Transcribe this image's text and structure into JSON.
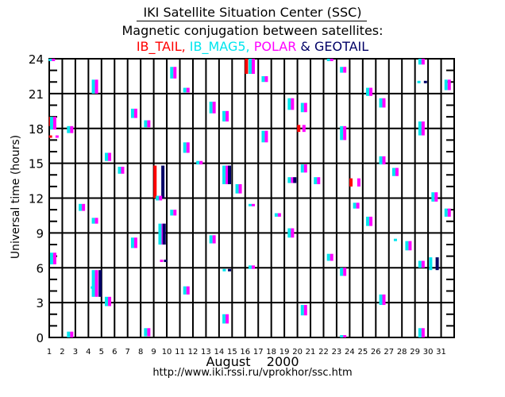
{
  "header": {
    "title": "IKI Satellite Situation Center (SSC)",
    "subtitle": "Magnetic conjugation between satellites:",
    "satellites_line": [
      {
        "text": "IB_TAIL",
        "color": "#ff0000"
      },
      {
        "text": ", ",
        "color": "#ff0000"
      },
      {
        "text": "IB_MAG5",
        "color": "#00e5ee"
      },
      {
        "text": ", ",
        "color": "#00e5ee"
      },
      {
        "text": "POLAR",
        "color": "#ff00ff"
      },
      {
        "text": " & ",
        "color": "#000066"
      },
      {
        "text": "GEOTAIL",
        "color": "#000066"
      }
    ]
  },
  "footer": {
    "month_label": "August    2000",
    "url": "http://www.iki.rssi.ru/vprokhor/ssc.htm"
  },
  "colors": {
    "IB_TAIL": "#ff0000",
    "IB_MAG5": "#00e5ee",
    "POLAR": "#ff00ff",
    "GEOTAIL": "#000066",
    "grid": "#000000"
  },
  "chart_data": {
    "type": "scatter",
    "title": "Magnetic conjugation between satellites",
    "xlabel": "August 2000",
    "ylabel": "Universal time (hours)",
    "xlim": [
      1,
      32
    ],
    "ylim": [
      0,
      24
    ],
    "x_ticks": [
      "1",
      "2",
      "3",
      "4",
      "5",
      "6",
      "7",
      "8",
      "9",
      "10",
      "11",
      "12",
      "13",
      "14",
      "15",
      "16",
      "17",
      "18",
      "19",
      "20",
      "21",
      "22",
      "23",
      "24",
      "25",
      "26",
      "27",
      "28",
      "29",
      "30",
      "31"
    ],
    "y_ticks": [
      0,
      3,
      6,
      9,
      12,
      15,
      18,
      21,
      24
    ],
    "grid": true,
    "legend": "top",
    "series_names": [
      "IB_TAIL",
      "IB_MAG5",
      "POLAR",
      "GEOTAIL"
    ],
    "intervals": [
      {
        "day": 1.2,
        "sat": [
          "IB_MAG5",
          "POLAR"
        ],
        "start": 23.9,
        "end": 24.3
      },
      {
        "day": 1.1,
        "sat": [
          "IB_TAIL"
        ],
        "start": 18.2,
        "end": 19.0
      },
      {
        "day": 1.3,
        "sat": [
          "IB_MAG5",
          "POLAR"
        ],
        "start": 17.9,
        "end": 19.0
      },
      {
        "day": 1.1,
        "sat": [
          "IB_TAIL"
        ],
        "start": 17.2,
        "end": 17.4
      },
      {
        "day": 1.6,
        "sat": [
          "POLAR"
        ],
        "start": 17.2,
        "end": 17.4
      },
      {
        "day": 1.3,
        "sat": [
          "IB_MAG5",
          "POLAR"
        ],
        "start": 6.3,
        "end": 7.3
      },
      {
        "day": 2.6,
        "sat": [
          "IB_MAG5",
          "POLAR"
        ],
        "start": 17.6,
        "end": 18.2
      },
      {
        "day": 2.6,
        "sat": [
          "IB_MAG5",
          "POLAR"
        ],
        "start": 0.0,
        "end": 0.5
      },
      {
        "day": 3.5,
        "sat": [
          "IB_MAG5",
          "POLAR"
        ],
        "start": 10.9,
        "end": 11.5
      },
      {
        "day": 4.5,
        "sat": [
          "IB_MAG5",
          "POLAR"
        ],
        "start": 21.0,
        "end": 22.2
      },
      {
        "day": 4.5,
        "sat": [
          "IB_MAG5",
          "POLAR"
        ],
        "start": 9.8,
        "end": 10.3
      },
      {
        "day": 4.5,
        "sat": [
          "IB_MAG5",
          "POLAR"
        ],
        "start": 3.5,
        "end": 5.8
      },
      {
        "day": 4.9,
        "sat": [
          "GEOTAIL"
        ],
        "start": 3.5,
        "end": 5.8
      },
      {
        "day": 4.3,
        "sat": [
          "IB_MAG5"
        ],
        "start": 4.2,
        "end": 4.4
      },
      {
        "day": 5.5,
        "sat": [
          "IB_MAG5",
          "POLAR"
        ],
        "start": 15.2,
        "end": 15.9
      },
      {
        "day": 5.5,
        "sat": [
          "IB_MAG5",
          "POLAR"
        ],
        "start": 2.7,
        "end": 3.5
      },
      {
        "day": 6.5,
        "sat": [
          "IB_MAG5",
          "POLAR"
        ],
        "start": 14.1,
        "end": 14.7
      },
      {
        "day": 7.5,
        "sat": [
          "IB_MAG5",
          "POLAR"
        ],
        "start": 18.9,
        "end": 19.7
      },
      {
        "day": 7.5,
        "sat": [
          "IB_MAG5",
          "POLAR"
        ],
        "start": 7.7,
        "end": 8.6
      },
      {
        "day": 8.5,
        "sat": [
          "IB_MAG5",
          "POLAR"
        ],
        "start": 18.1,
        "end": 18.7
      },
      {
        "day": 8.5,
        "sat": [
          "IB_MAG5",
          "POLAR"
        ],
        "start": 0.1,
        "end": 0.8
      },
      {
        "day": 9.1,
        "sat": [
          "IB_TAIL"
        ],
        "start": 12.0,
        "end": 14.8
      },
      {
        "day": 9.7,
        "sat": [
          "GEOTAIL"
        ],
        "start": 12.0,
        "end": 14.8
      },
      {
        "day": 9.4,
        "sat": [
          "IB_MAG5",
          "POLAR"
        ],
        "start": 11.8,
        "end": 12.2
      },
      {
        "day": 9.6,
        "sat": [
          "IB_MAG5",
          "POLAR"
        ],
        "start": 8.0,
        "end": 9.8
      },
      {
        "day": 9.8,
        "sat": [
          "GEOTAIL"
        ],
        "start": 8.0,
        "end": 9.8
      },
      {
        "day": 9.6,
        "sat": [
          "POLAR"
        ],
        "start": 6.5,
        "end": 6.7
      },
      {
        "day": 9.9,
        "sat": [
          "GEOTAIL"
        ],
        "start": 6.5,
        "end": 6.7
      },
      {
        "day": 10.5,
        "sat": [
          "IB_MAG5",
          "POLAR"
        ],
        "start": 22.3,
        "end": 23.3
      },
      {
        "day": 10.5,
        "sat": [
          "IB_MAG5",
          "POLAR"
        ],
        "start": 10.5,
        "end": 11.0
      },
      {
        "day": 11.5,
        "sat": [
          "IB_MAG5",
          "POLAR"
        ],
        "start": 21.1,
        "end": 21.5
      },
      {
        "day": 11.5,
        "sat": [
          "IB_MAG5",
          "POLAR"
        ],
        "start": 15.9,
        "end": 16.8
      },
      {
        "day": 11.5,
        "sat": [
          "IB_MAG5",
          "POLAR"
        ],
        "start": 3.7,
        "end": 4.4
      },
      {
        "day": 12.5,
        "sat": [
          "IB_MAG5",
          "POLAR"
        ],
        "start": 14.9,
        "end": 15.2
      },
      {
        "day": 13.5,
        "sat": [
          "IB_MAG5",
          "POLAR"
        ],
        "start": 19.3,
        "end": 20.3
      },
      {
        "day": 13.5,
        "sat": [
          "IB_MAG5",
          "POLAR"
        ],
        "start": 8.1,
        "end": 8.8
      },
      {
        "day": 14.5,
        "sat": [
          "IB_MAG5",
          "POLAR"
        ],
        "start": 18.6,
        "end": 19.5
      },
      {
        "day": 14.5,
        "sat": [
          "IB_MAG5",
          "POLAR"
        ],
        "start": 13.2,
        "end": 14.8
      },
      {
        "day": 14.8,
        "sat": [
          "GEOTAIL"
        ],
        "start": 13.2,
        "end": 14.8
      },
      {
        "day": 14.4,
        "sat": [
          "IB_MAG5"
        ],
        "start": 5.7,
        "end": 5.9
      },
      {
        "day": 14.8,
        "sat": [
          "GEOTAIL"
        ],
        "start": 5.7,
        "end": 5.9
      },
      {
        "day": 14.5,
        "sat": [
          "IB_MAG5",
          "POLAR"
        ],
        "start": 1.2,
        "end": 2.0
      },
      {
        "day": 15.5,
        "sat": [
          "IB_MAG5",
          "POLAR"
        ],
        "start": 12.4,
        "end": 13.2
      },
      {
        "day": 16.1,
        "sat": [
          "IB_TAIL"
        ],
        "start": 22.7,
        "end": 24.0
      },
      {
        "day": 16.5,
        "sat": [
          "IB_MAG5",
          "POLAR"
        ],
        "start": 22.7,
        "end": 24.0
      },
      {
        "day": 16.5,
        "sat": [
          "IB_MAG5",
          "POLAR"
        ],
        "start": 11.3,
        "end": 11.5
      },
      {
        "day": 16.5,
        "sat": [
          "IB_MAG5",
          "POLAR"
        ],
        "start": 5.9,
        "end": 6.2
      },
      {
        "day": 17.5,
        "sat": [
          "IB_MAG5",
          "POLAR"
        ],
        "start": 22.0,
        "end": 22.5
      },
      {
        "day": 17.5,
        "sat": [
          "IB_MAG5",
          "POLAR"
        ],
        "start": 16.8,
        "end": 17.8
      },
      {
        "day": 18.5,
        "sat": [
          "IB_MAG5",
          "POLAR"
        ],
        "start": 10.4,
        "end": 10.7
      },
      {
        "day": 19.5,
        "sat": [
          "IB_MAG5",
          "POLAR"
        ],
        "start": 19.6,
        "end": 20.6
      },
      {
        "day": 19.5,
        "sat": [
          "IB_MAG5",
          "POLAR"
        ],
        "start": 13.3,
        "end": 13.8
      },
      {
        "day": 19.8,
        "sat": [
          "GEOTAIL"
        ],
        "start": 13.3,
        "end": 13.8
      },
      {
        "day": 19.5,
        "sat": [
          "IB_MAG5",
          "POLAR"
        ],
        "start": 8.6,
        "end": 9.4
      },
      {
        "day": 20.1,
        "sat": [
          "IB_TAIL"
        ],
        "start": 17.7,
        "end": 18.3
      },
      {
        "day": 20.5,
        "sat": [
          "POLAR"
        ],
        "start": 17.7,
        "end": 18.3
      },
      {
        "day": 20.5,
        "sat": [
          "IB_MAG5",
          "POLAR"
        ],
        "start": 19.4,
        "end": 20.2
      },
      {
        "day": 20.5,
        "sat": [
          "IB_MAG5",
          "POLAR"
        ],
        "start": 14.2,
        "end": 14.9
      },
      {
        "day": 20.5,
        "sat": [
          "IB_MAG5",
          "POLAR"
        ],
        "start": 1.9,
        "end": 2.8
      },
      {
        "day": 21.5,
        "sat": [
          "IB_MAG5",
          "POLAR"
        ],
        "start": 13.2,
        "end": 13.8
      },
      {
        "day": 22.5,
        "sat": [
          "IB_MAG5",
          "POLAR"
        ],
        "start": 23.9,
        "end": 24.4
      },
      {
        "day": 22.5,
        "sat": [
          "IB_MAG5",
          "POLAR"
        ],
        "start": 6.6,
        "end": 7.2
      },
      {
        "day": 23.5,
        "sat": [
          "IB_MAG5",
          "POLAR"
        ],
        "start": 22.8,
        "end": 23.3
      },
      {
        "day": 23.5,
        "sat": [
          "IB_MAG5",
          "POLAR"
        ],
        "start": 17.0,
        "end": 18.2
      },
      {
        "day": 23.5,
        "sat": [
          "IB_MAG5",
          "POLAR"
        ],
        "start": 5.3,
        "end": 6.0
      },
      {
        "day": 23.5,
        "sat": [
          "IB_MAG5",
          "POLAR"
        ],
        "start": 0.0,
        "end": 0.2
      },
      {
        "day": 24.1,
        "sat": [
          "IB_TAIL"
        ],
        "start": 13.0,
        "end": 13.7
      },
      {
        "day": 24.7,
        "sat": [
          "POLAR"
        ],
        "start": 13.0,
        "end": 13.7
      },
      {
        "day": 24.5,
        "sat": [
          "IB_MAG5",
          "POLAR"
        ],
        "start": 11.1,
        "end": 11.6
      },
      {
        "day": 25.5,
        "sat": [
          "IB_MAG5",
          "POLAR"
        ],
        "start": 20.8,
        "end": 21.5
      },
      {
        "day": 25.5,
        "sat": [
          "IB_MAG5",
          "POLAR"
        ],
        "start": 9.6,
        "end": 10.4
      },
      {
        "day": 26.5,
        "sat": [
          "IB_MAG5",
          "POLAR"
        ],
        "start": 19.8,
        "end": 20.6
      },
      {
        "day": 26.5,
        "sat": [
          "IB_MAG5",
          "POLAR"
        ],
        "start": 14.9,
        "end": 15.6
      },
      {
        "day": 26.5,
        "sat": [
          "IB_MAG5",
          "POLAR"
        ],
        "start": 2.8,
        "end": 3.7
      },
      {
        "day": 27.5,
        "sat": [
          "IB_MAG5",
          "POLAR"
        ],
        "start": 13.9,
        "end": 14.6
      },
      {
        "day": 27.5,
        "sat": [
          "IB_MAG5"
        ],
        "start": 8.3,
        "end": 8.5
      },
      {
        "day": 28.5,
        "sat": [
          "IB_MAG5",
          "POLAR"
        ],
        "start": 7.5,
        "end": 8.3
      },
      {
        "day": 29.5,
        "sat": [
          "IB_MAG5",
          "POLAR"
        ],
        "start": 23.5,
        "end": 24.1
      },
      {
        "day": 29.3,
        "sat": [
          "IB_MAG5"
        ],
        "start": 21.9,
        "end": 22.1
      },
      {
        "day": 29.8,
        "sat": [
          "GEOTAIL"
        ],
        "start": 21.9,
        "end": 22.1
      },
      {
        "day": 29.5,
        "sat": [
          "IB_MAG5",
          "POLAR"
        ],
        "start": 17.4,
        "end": 18.6
      },
      {
        "day": 29.5,
        "sat": [
          "IB_MAG5",
          "POLAR"
        ],
        "start": 6.0,
        "end": 6.6
      },
      {
        "day": 29.5,
        "sat": [
          "IB_MAG5",
          "POLAR"
        ],
        "start": 0.0,
        "end": 0.8
      },
      {
        "day": 30.2,
        "sat": [
          "IB_MAG5"
        ],
        "start": 5.8,
        "end": 6.9
      },
      {
        "day": 30.7,
        "sat": [
          "GEOTAIL"
        ],
        "start": 5.8,
        "end": 6.9
      },
      {
        "day": 30.5,
        "sat": [
          "IB_MAG5",
          "POLAR"
        ],
        "start": 11.7,
        "end": 12.5
      },
      {
        "day": 31.5,
        "sat": [
          "IB_MAG5",
          "POLAR"
        ],
        "start": 21.3,
        "end": 22.2
      },
      {
        "day": 31.5,
        "sat": [
          "IB_MAG5",
          "POLAR"
        ],
        "start": 10.4,
        "end": 11.1
      }
    ]
  }
}
